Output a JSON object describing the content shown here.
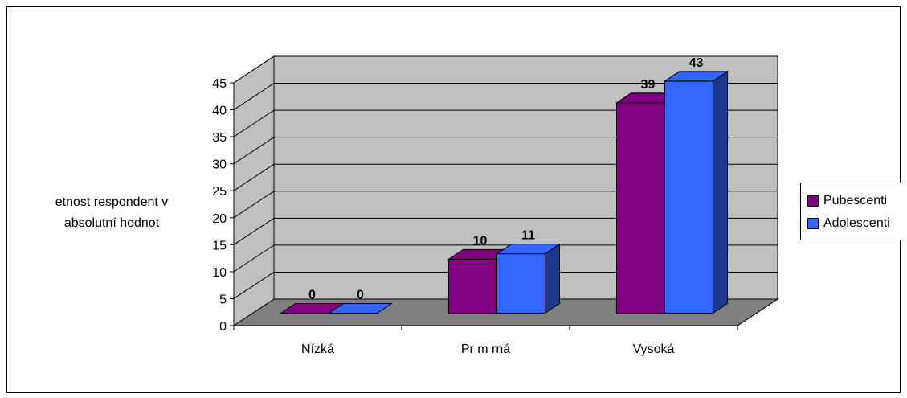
{
  "chart_data": {
    "type": "bar",
    "title": "",
    "ylabel_line1": "etnost respondent   v",
    "ylabel_line2": "absolutní hodnot",
    "xlabel": "",
    "categories": [
      "Nízká",
      "Pr  m  rná",
      "Vysoká"
    ],
    "ylim": [
      0,
      45
    ],
    "yticks": [
      "0",
      "5",
      "10",
      "15",
      "20",
      "25",
      "30",
      "35",
      "40",
      "45"
    ],
    "grid": true,
    "legend_position": "right",
    "series": [
      {
        "name": "Pubescenti",
        "values": [
          0,
          10,
          39
        ],
        "color": "#800080"
      },
      {
        "name": "Adolescenti",
        "values": [
          0,
          11,
          43
        ],
        "color": "#3366FF"
      }
    ]
  },
  "legend": {
    "items": [
      {
        "label": "Pubescenti",
        "color": "#800080"
      },
      {
        "label": "Adolescenti",
        "color": "#3366FF"
      }
    ]
  }
}
